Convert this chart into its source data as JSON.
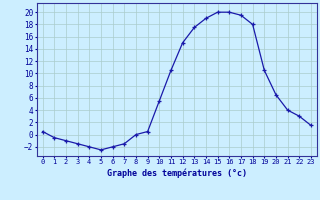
{
  "hours": [
    0,
    1,
    2,
    3,
    4,
    5,
    6,
    7,
    8,
    9,
    10,
    11,
    12,
    13,
    14,
    15,
    16,
    17,
    18,
    19,
    20,
    21,
    22,
    23
  ],
  "temperatures": [
    0.5,
    -0.5,
    -1.0,
    -1.5,
    -2.0,
    -2.5,
    -2.0,
    -1.5,
    0.0,
    0.5,
    5.5,
    10.5,
    15.0,
    17.5,
    19.0,
    20.0,
    20.0,
    19.5,
    18.0,
    10.5,
    6.5,
    4.0,
    3.0,
    1.5
  ],
  "xlabel": "Graphe des températures (°c)",
  "ylim": [
    -3.5,
    21.5
  ],
  "xlim": [
    -0.5,
    23.5
  ],
  "yticks": [
    -2,
    0,
    2,
    4,
    6,
    8,
    10,
    12,
    14,
    16,
    18,
    20
  ],
  "xtick_labels": [
    "0",
    "1",
    "2",
    "3",
    "4",
    "5",
    "6",
    "7",
    "8",
    "9",
    "10",
    "11",
    "12",
    "13",
    "14",
    "15",
    "16",
    "17",
    "18",
    "19",
    "20",
    "21",
    "22",
    "23"
  ],
  "line_color": "#1a1aaa",
  "marker": "+",
  "markersize": 3,
  "linewidth": 0.9,
  "bg_color": "#cceeff",
  "grid_color": "#aacccc",
  "axis_color": "#333399",
  "label_color": "#000099",
  "tick_color": "#000099",
  "xlabel_fontsize": 6.0,
  "ytick_fontsize": 5.5,
  "xtick_fontsize": 5.0
}
